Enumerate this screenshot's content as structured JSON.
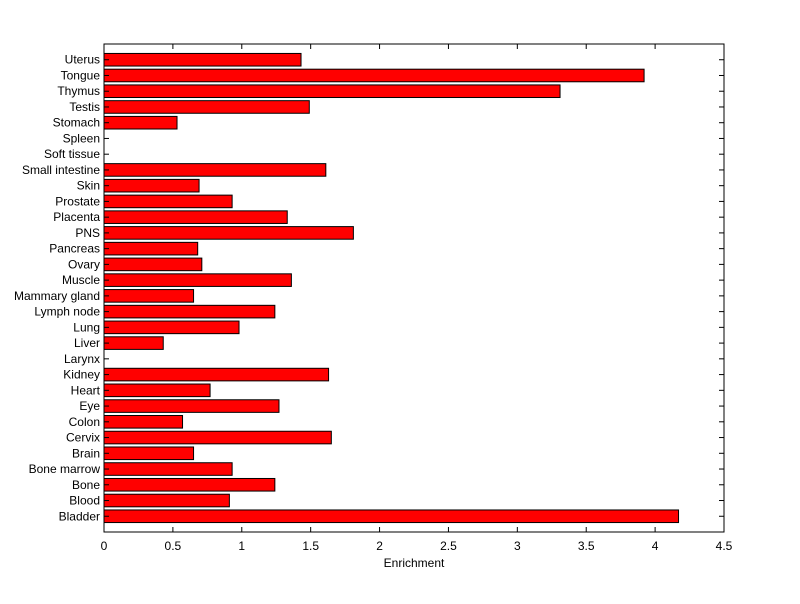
{
  "chart_data": {
    "type": "bar",
    "orientation": "horizontal",
    "title": "",
    "xlabel": "Enrichment",
    "ylabel": "",
    "xlim": [
      0,
      4.5
    ],
    "xticks": [
      "0",
      "0.5",
      "1",
      "1.5",
      "2",
      "2.5",
      "3",
      "3.5",
      "4",
      "4.5"
    ],
    "grid": false,
    "bar_color": "#ff0000",
    "edge_color": "#000000",
    "categories": [
      "Bladder",
      "Blood",
      "Bone",
      "Bone marrow",
      "Brain",
      "Cervix",
      "Colon",
      "Eye",
      "Heart",
      "Kidney",
      "Larynx",
      "Liver",
      "Lung",
      "Lymph node",
      "Mammary gland",
      "Muscle",
      "Ovary",
      "Pancreas",
      "PNS",
      "Placenta",
      "Prostate",
      "Skin",
      "Small intestine",
      "Soft tissue",
      "Spleen",
      "Stomach",
      "Testis",
      "Thymus",
      "Tongue",
      "Uterus"
    ],
    "values": [
      4.17,
      0.91,
      1.24,
      0.93,
      0.65,
      1.65,
      0.57,
      1.27,
      0.77,
      1.63,
      0,
      0.43,
      0.98,
      1.24,
      0.65,
      1.36,
      0.71,
      0.68,
      1.81,
      1.33,
      0.93,
      0.69,
      1.61,
      0,
      0,
      0.53,
      1.49,
      3.31,
      3.92,
      1.43
    ]
  }
}
